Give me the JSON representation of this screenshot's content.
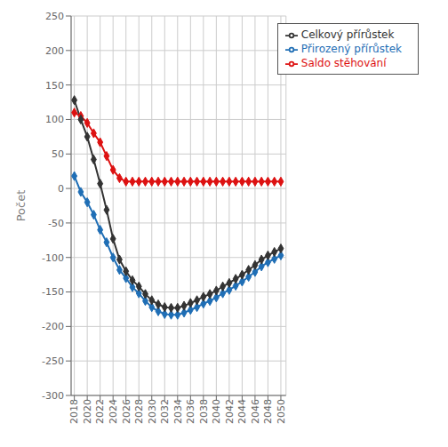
{
  "chart_data": {
    "type": "line",
    "ylabel": "Počet",
    "x": [
      2018,
      2019,
      2020,
      2021,
      2022,
      2023,
      2024,
      2025,
      2026,
      2027,
      2028,
      2029,
      2030,
      2031,
      2032,
      2033,
      2034,
      2035,
      2036,
      2037,
      2038,
      2039,
      2040,
      2041,
      2042,
      2043,
      2044,
      2045,
      2046,
      2047,
      2048,
      2049,
      2050
    ],
    "xlim": [
      2017.5,
      2050.8
    ],
    "xticks": [
      2018,
      2020,
      2022,
      2024,
      2026,
      2028,
      2030,
      2032,
      2034,
      2036,
      2038,
      2040,
      2042,
      2044,
      2046,
      2048,
      2050
    ],
    "ylim": [
      -300,
      250
    ],
    "yticks": [
      -300,
      -250,
      -200,
      -150,
      -100,
      -50,
      0,
      50,
      100,
      150,
      200,
      250
    ],
    "grid": true,
    "legend": "upper right",
    "marker": "diamond",
    "line_style": "solid",
    "series": [
      {
        "name": "Přirozený přírůstek",
        "color": "#1f6eb5",
        "values": [
          18,
          -5,
          -20,
          -38,
          -60,
          -78,
          -100,
          -118,
          -130,
          -143,
          -152,
          -163,
          -172,
          -178,
          -182,
          -183,
          -183,
          -180,
          -176,
          -172,
          -167,
          -163,
          -158,
          -152,
          -147,
          -141,
          -135,
          -128,
          -121,
          -113,
          -107,
          -102,
          -97
        ]
      },
      {
        "name": "Saldo stěhování",
        "color": "#dd1111",
        "values": [
          110,
          105,
          95,
          80,
          67,
          47,
          27,
          15,
          10,
          10,
          10,
          10,
          10,
          10,
          10,
          10,
          10,
          10,
          10,
          10,
          10,
          10,
          10,
          10,
          10,
          10,
          10,
          10,
          10,
          10,
          10,
          10,
          10
        ]
      },
      {
        "name": "Celkový přírůstek",
        "color": "#333333",
        "values": [
          128,
          100,
          75,
          42,
          7,
          -31,
          -73,
          -103,
          -120,
          -133,
          -142,
          -153,
          -162,
          -168,
          -172,
          -173,
          -173,
          -170,
          -166,
          -162,
          -157,
          -153,
          -148,
          -142,
          -137,
          -131,
          -125,
          -118,
          -111,
          -103,
          -97,
          -92,
          -87
        ]
      }
    ]
  }
}
